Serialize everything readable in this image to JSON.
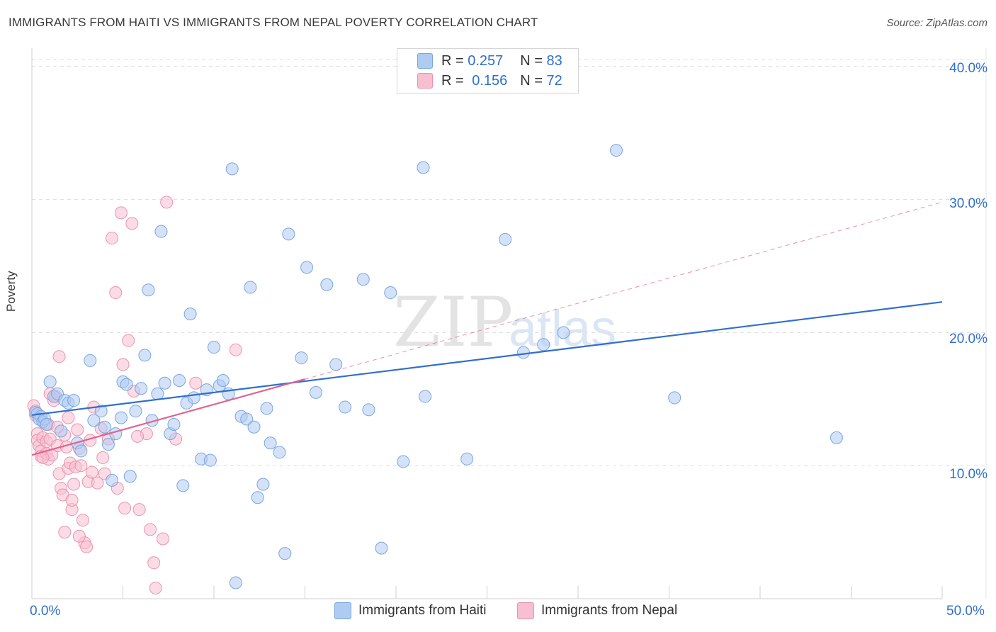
{
  "header": {
    "title": "IMMIGRANTS FROM HAITI VS IMMIGRANTS FROM NEPAL POVERTY CORRELATION CHART",
    "source": "Source: ZipAtlas.com"
  },
  "legend": {
    "haiti": {
      "r_label": "R =",
      "r_value": "0.257",
      "n_label": "N =",
      "n_value": "83"
    },
    "nepal": {
      "r_label": "R =",
      "r_value": "0.156",
      "n_label": "N =",
      "n_value": "72"
    }
  },
  "axis": {
    "y_title": "Poverty",
    "x_min_label": "0.0%",
    "x_max_label": "50.0%",
    "y_ticks": [
      "10.0%",
      "20.0%",
      "30.0%",
      "40.0%"
    ]
  },
  "series_labels": {
    "haiti": "Immigrants from Haiti",
    "nepal": "Immigrants from Nepal"
  },
  "watermark": {
    "zip": "ZIP",
    "atlas": "atlas"
  },
  "colors": {
    "haiti_fill": "#aecbf2",
    "haiti_stroke": "#7aa6e0",
    "haiti_line": "#2f6fce",
    "nepal_fill": "#f7bfd0",
    "nepal_stroke": "#ec93ae",
    "nepal_line": "#e2628f",
    "accent_text": "#2f6fce"
  },
  "chart_data": {
    "type": "scatter",
    "title": "IMMIGRANTS FROM HAITI VS IMMIGRANTS FROM NEPAL POVERTY CORRELATION CHART",
    "xlabel": "",
    "ylabel": "Poverty",
    "xlim": [
      0,
      50
    ],
    "ylim": [
      0,
      41
    ],
    "x_ticks": [
      0,
      5,
      10,
      15,
      20,
      25,
      30,
      35,
      40,
      45,
      50
    ],
    "y_ticks": [
      10,
      20,
      30,
      40
    ],
    "series": [
      {
        "name": "Immigrants from Haiti",
        "R": 0.257,
        "N": 83,
        "trend": {
          "x": [
            0,
            50
          ],
          "y": [
            13.8,
            22.3
          ],
          "style": "solid"
        },
        "points": [
          [
            0.2,
            14.0
          ],
          [
            0.3,
            13.9
          ],
          [
            0.5,
            13.7
          ],
          [
            0.4,
            13.5
          ],
          [
            0.6,
            13.3
          ],
          [
            0.7,
            13.5
          ],
          [
            0.8,
            13.1
          ],
          [
            1.0,
            16.3
          ],
          [
            1.2,
            15.2
          ],
          [
            1.4,
            15.4
          ],
          [
            1.6,
            12.6
          ],
          [
            1.8,
            14.9
          ],
          [
            2.0,
            14.7
          ],
          [
            2.3,
            14.9
          ],
          [
            2.5,
            11.7
          ],
          [
            2.7,
            11.1
          ],
          [
            3.2,
            17.9
          ],
          [
            3.4,
            13.4
          ],
          [
            3.8,
            14.1
          ],
          [
            4.0,
            12.9
          ],
          [
            4.2,
            11.6
          ],
          [
            4.4,
            8.9
          ],
          [
            4.6,
            12.4
          ],
          [
            4.9,
            13.6
          ],
          [
            5.0,
            16.3
          ],
          [
            5.2,
            16.1
          ],
          [
            5.4,
            9.2
          ],
          [
            5.7,
            14.1
          ],
          [
            6.0,
            15.8
          ],
          [
            6.2,
            18.3
          ],
          [
            6.4,
            23.2
          ],
          [
            6.6,
            13.4
          ],
          [
            6.9,
            15.4
          ],
          [
            7.1,
            27.6
          ],
          [
            7.3,
            16.2
          ],
          [
            7.6,
            12.4
          ],
          [
            7.8,
            13.1
          ],
          [
            8.1,
            16.4
          ],
          [
            8.3,
            8.5
          ],
          [
            8.5,
            14.7
          ],
          [
            8.7,
            21.4
          ],
          [
            8.9,
            15.1
          ],
          [
            9.3,
            10.5
          ],
          [
            9.6,
            15.7
          ],
          [
            9.8,
            10.4
          ],
          [
            10.0,
            18.9
          ],
          [
            10.3,
            16.0
          ],
          [
            10.5,
            16.4
          ],
          [
            10.8,
            15.4
          ],
          [
            11.0,
            32.3
          ],
          [
            11.2,
            1.2
          ],
          [
            11.5,
            13.7
          ],
          [
            11.8,
            13.5
          ],
          [
            12.0,
            23.4
          ],
          [
            12.2,
            12.9
          ],
          [
            12.4,
            7.6
          ],
          [
            12.7,
            8.6
          ],
          [
            12.9,
            14.3
          ],
          [
            13.1,
            11.7
          ],
          [
            13.6,
            11.0
          ],
          [
            13.9,
            3.4
          ],
          [
            14.1,
            27.4
          ],
          [
            14.8,
            18.1
          ],
          [
            15.1,
            24.9
          ],
          [
            15.6,
            15.5
          ],
          [
            16.2,
            23.6
          ],
          [
            16.7,
            17.6
          ],
          [
            17.2,
            14.4
          ],
          [
            18.2,
            24.0
          ],
          [
            18.5,
            14.2
          ],
          [
            19.2,
            3.8
          ],
          [
            19.7,
            23.0
          ],
          [
            20.4,
            10.3
          ],
          [
            21.5,
            32.4
          ],
          [
            21.6,
            15.2
          ],
          [
            23.9,
            10.5
          ],
          [
            26.0,
            27.0
          ],
          [
            27.0,
            18.5
          ],
          [
            28.1,
            19.1
          ],
          [
            29.2,
            20.0
          ],
          [
            32.1,
            33.7
          ],
          [
            35.3,
            15.1
          ],
          [
            44.2,
            12.1
          ]
        ]
      },
      {
        "name": "Immigrants from Nepal",
        "R": 0.156,
        "N": 72,
        "trend": {
          "x": [
            0,
            15
          ],
          "y": [
            10.8,
            16.5
          ],
          "style": "solid",
          "extension": {
            "x": [
              15,
              50
            ],
            "y": [
              16.5,
              29.8
            ],
            "style": "dashed"
          }
        },
        "points": [
          [
            0.1,
            14.5
          ],
          [
            0.2,
            14.1
          ],
          [
            0.2,
            13.8
          ],
          [
            0.3,
            12.4
          ],
          [
            0.3,
            11.9
          ],
          [
            0.4,
            11.5
          ],
          [
            0.5,
            11.1
          ],
          [
            0.5,
            10.7
          ],
          [
            0.6,
            12.1
          ],
          [
            0.7,
            13.2
          ],
          [
            0.8,
            11.8
          ],
          [
            0.8,
            10.9
          ],
          [
            0.9,
            10.5
          ],
          [
            1.0,
            15.4
          ],
          [
            1.0,
            12.0
          ],
          [
            1.1,
            10.8
          ],
          [
            1.2,
            14.9
          ],
          [
            1.3,
            15.2
          ],
          [
            1.4,
            11.5
          ],
          [
            1.5,
            18.2
          ],
          [
            1.5,
            9.4
          ],
          [
            1.6,
            8.3
          ],
          [
            1.7,
            7.8
          ],
          [
            1.8,
            12.3
          ],
          [
            1.9,
            11.4
          ],
          [
            2.0,
            13.6
          ],
          [
            2.0,
            9.8
          ],
          [
            2.1,
            10.2
          ],
          [
            2.2,
            6.7
          ],
          [
            2.2,
            7.4
          ],
          [
            2.3,
            8.6
          ],
          [
            2.4,
            9.9
          ],
          [
            2.5,
            12.7
          ],
          [
            2.6,
            11.3
          ],
          [
            2.7,
            10.0
          ],
          [
            2.8,
            5.9
          ],
          [
            2.9,
            4.2
          ],
          [
            3.0,
            3.9
          ],
          [
            3.1,
            8.8
          ],
          [
            3.2,
            11.9
          ],
          [
            3.3,
            9.5
          ],
          [
            3.4,
            14.4
          ],
          [
            3.6,
            8.7
          ],
          [
            3.8,
            12.8
          ],
          [
            4.0,
            9.4
          ],
          [
            4.2,
            12.0
          ],
          [
            4.4,
            27.1
          ],
          [
            4.6,
            23.0
          ],
          [
            4.7,
            8.3
          ],
          [
            4.9,
            29.0
          ],
          [
            5.0,
            17.6
          ],
          [
            5.1,
            6.8
          ],
          [
            5.3,
            19.4
          ],
          [
            5.5,
            28.2
          ],
          [
            5.6,
            15.6
          ],
          [
            5.9,
            6.7
          ],
          [
            6.3,
            12.4
          ],
          [
            6.5,
            5.2
          ],
          [
            6.7,
            2.7
          ],
          [
            6.8,
            0.8
          ],
          [
            7.2,
            4.5
          ],
          [
            7.4,
            29.8
          ],
          [
            7.9,
            12.0
          ],
          [
            9.0,
            16.2
          ],
          [
            11.2,
            18.7
          ],
          [
            0.9,
            13.1
          ],
          [
            1.4,
            12.9
          ],
          [
            0.6,
            10.6
          ],
          [
            1.8,
            5.0
          ],
          [
            2.6,
            4.7
          ],
          [
            3.9,
            10.6
          ],
          [
            5.8,
            12.2
          ]
        ]
      }
    ]
  }
}
